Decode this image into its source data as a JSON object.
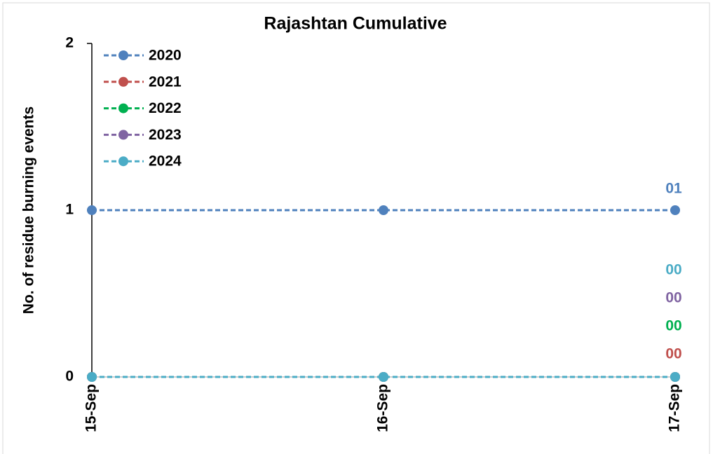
{
  "chart_data": {
    "type": "line",
    "title": "Rajashtan Cumulative",
    "y_label": "No. of residue burning events",
    "categories": [
      "15-Sep",
      "16-Sep",
      "17-Sep"
    ],
    "series": [
      {
        "name": "2020",
        "color": "#4f81bd",
        "values": [
          1,
          1,
          1
        ],
        "value_labels": [
          null,
          null,
          "01"
        ]
      },
      {
        "name": "2021",
        "color": "#c0504d",
        "values": [
          0,
          0,
          0
        ],
        "value_labels": [
          null,
          null,
          "00"
        ]
      },
      {
        "name": "2022",
        "color": "#00b050",
        "values": [
          0,
          0,
          0
        ],
        "value_labels": [
          null,
          null,
          "00"
        ]
      },
      {
        "name": "2023",
        "color": "#8064a2",
        "values": [
          0,
          0,
          0
        ],
        "value_labels": [
          null,
          null,
          "00"
        ]
      },
      {
        "name": "2024",
        "color": "#4bacc6",
        "values": [
          0,
          0,
          0
        ],
        "value_labels": [
          null,
          null,
          "00"
        ]
      }
    ],
    "ylim": [
      0,
      2
    ],
    "yticks": [
      0,
      1,
      2
    ],
    "legend": "upper left"
  }
}
